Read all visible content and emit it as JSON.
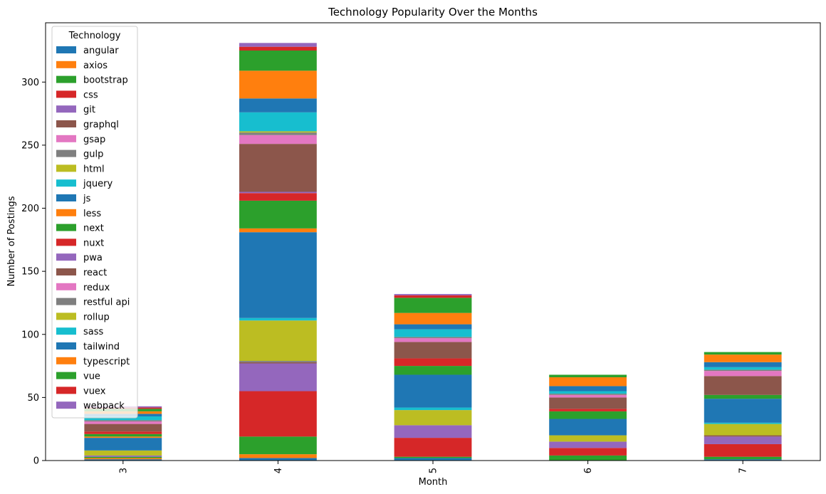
{
  "chart_data": {
    "type": "bar",
    "stacked": true,
    "title": "Technology Popularity Over the Months",
    "xlabel": "Month",
    "ylabel": "Number of Postings",
    "categories": [
      "3",
      "4",
      "5",
      "6",
      "7"
    ],
    "yticks": [
      0,
      50,
      100,
      150,
      200,
      250,
      300
    ],
    "ylim": [
      0,
      347
    ],
    "grid": false,
    "legend": {
      "title": "Technology",
      "placement": "top-left"
    },
    "series": [
      {
        "name": "angular",
        "color": "#1f77b4",
        "values": [
          1,
          2,
          2,
          0,
          1
        ]
      },
      {
        "name": "axios",
        "color": "#ff7f0e",
        "values": [
          1,
          3,
          0,
          0,
          0
        ]
      },
      {
        "name": "bootstrap",
        "color": "#2ca02c",
        "values": [
          1,
          14,
          1,
          4,
          2
        ]
      },
      {
        "name": "css",
        "color": "#d62728",
        "values": [
          0,
          36,
          15,
          6,
          10
        ]
      },
      {
        "name": "git",
        "color": "#9467bd",
        "values": [
          1,
          22,
          10,
          5,
          6
        ]
      },
      {
        "name": "graphql",
        "color": "#8c564b",
        "values": [
          0,
          1,
          0,
          0,
          1
        ]
      },
      {
        "name": "gsap",
        "color": "#e377c2",
        "values": [
          0,
          0,
          0,
          0,
          0
        ]
      },
      {
        "name": "gulp",
        "color": "#7f7f7f",
        "values": [
          0,
          1,
          0,
          0,
          0
        ]
      },
      {
        "name": "html",
        "color": "#bcbd22",
        "values": [
          4,
          32,
          12,
          5,
          9
        ]
      },
      {
        "name": "jquery",
        "color": "#17becf",
        "values": [
          0,
          2,
          2,
          0,
          1
        ]
      },
      {
        "name": "js",
        "color": "#1f77b4",
        "values": [
          10,
          68,
          26,
          13,
          19
        ]
      },
      {
        "name": "less",
        "color": "#ff7f0e",
        "values": [
          1,
          3,
          0,
          0,
          0
        ]
      },
      {
        "name": "next",
        "color": "#2ca02c",
        "values": [
          2,
          22,
          7,
          6,
          3
        ]
      },
      {
        "name": "nuxt",
        "color": "#d62728",
        "values": [
          2,
          6,
          6,
          2,
          0
        ]
      },
      {
        "name": "pwa",
        "color": "#9467bd",
        "values": [
          0,
          1,
          0,
          0,
          0
        ]
      },
      {
        "name": "react",
        "color": "#8c564b",
        "values": [
          6,
          38,
          13,
          9,
          15
        ]
      },
      {
        "name": "redux",
        "color": "#e377c2",
        "values": [
          2,
          7,
          3,
          2,
          4
        ]
      },
      {
        "name": "restful api",
        "color": "#7f7f7f",
        "values": [
          1,
          2,
          1,
          1,
          1
        ]
      },
      {
        "name": "rollup",
        "color": "#bcbd22",
        "values": [
          0,
          1,
          0,
          0,
          0
        ]
      },
      {
        "name": "sass",
        "color": "#17becf",
        "values": [
          3,
          15,
          6,
          2,
          2
        ]
      },
      {
        "name": "tailwind",
        "color": "#1f77b4",
        "values": [
          2,
          11,
          4,
          4,
          4
        ]
      },
      {
        "name": "typescript",
        "color": "#ff7f0e",
        "values": [
          2,
          22,
          9,
          7,
          6
        ]
      },
      {
        "name": "vue",
        "color": "#2ca02c",
        "values": [
          2,
          16,
          12,
          2,
          2
        ]
      },
      {
        "name": "vuex",
        "color": "#d62728",
        "values": [
          1,
          3,
          2,
          0,
          0
        ]
      },
      {
        "name": "webpack",
        "color": "#9467bd",
        "values": [
          1,
          3,
          1,
          0,
          0
        ]
      }
    ]
  }
}
